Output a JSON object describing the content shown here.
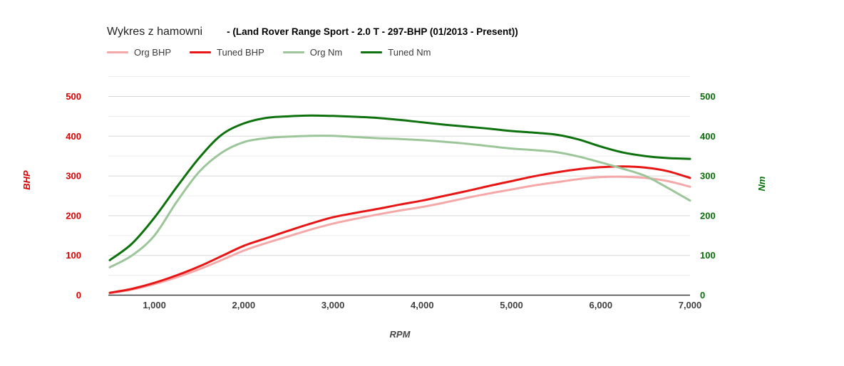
{
  "chart_data": {
    "type": "line",
    "title": "Wykres z hamowni",
    "subtitle": "- (Land Rover Range Sport - 2.0 T - 297-BHP (01/2013 - Present))",
    "xlabel": "RPM",
    "ylabel_left": "BHP",
    "ylabel_right": "Nm",
    "legend_position": "top",
    "grid": true,
    "xlim": [
      500,
      7000
    ],
    "ylim": [
      0,
      550
    ],
    "x_ticks": [
      {
        "value": 1000,
        "label": "1,000"
      },
      {
        "value": 2000,
        "label": "2,000"
      },
      {
        "value": 3000,
        "label": "3,000"
      },
      {
        "value": 4000,
        "label": "4,000"
      },
      {
        "value": 5000,
        "label": "5,000"
      },
      {
        "value": 6000,
        "label": "6,000"
      },
      {
        "value": 7000,
        "label": "7,000"
      }
    ],
    "y_ticks": [
      {
        "value": 0,
        "label": "0"
      },
      {
        "value": 100,
        "label": "100"
      },
      {
        "value": 200,
        "label": "200"
      },
      {
        "value": 300,
        "label": "300"
      },
      {
        "value": 400,
        "label": "400"
      },
      {
        "value": 500,
        "label": "500"
      }
    ],
    "y_minor_gridlines": [
      50,
      150,
      250,
      350,
      450,
      550
    ],
    "x": [
      500,
      750,
      1000,
      1250,
      1500,
      1750,
      2000,
      2250,
      2500,
      2750,
      3000,
      3250,
      3500,
      3750,
      4000,
      4250,
      4500,
      4750,
      5000,
      5250,
      5500,
      5750,
      6000,
      6250,
      6500,
      6750,
      7000
    ],
    "series": [
      {
        "name": "Org BHP",
        "axis": "left",
        "color": "#f5a8a8",
        "values": [
          5,
          14,
          28,
          45,
          65,
          88,
          112,
          131,
          148,
          165,
          180,
          192,
          203,
          213,
          222,
          233,
          245,
          256,
          266,
          276,
          284,
          292,
          297,
          298,
          295,
          287,
          273
        ]
      },
      {
        "name": "Tuned BHP",
        "axis": "left",
        "color": "#e81515",
        "values": [
          6,
          16,
          31,
          50,
          72,
          98,
          124,
          143,
          162,
          180,
          196,
          207,
          217,
          228,
          238,
          250,
          262,
          275,
          287,
          299,
          309,
          317,
          322,
          324,
          321,
          312,
          295
        ]
      },
      {
        "name": "Org Nm",
        "axis": "right",
        "color": "#9cc69a",
        "values": [
          70,
          100,
          150,
          235,
          310,
          358,
          385,
          395,
          399,
          401,
          401,
          398,
          395,
          393,
          390,
          386,
          381,
          375,
          369,
          365,
          360,
          349,
          334,
          318,
          300,
          270,
          238
        ]
      },
      {
        "name": "Tuned Nm",
        "axis": "right",
        "color": "#0d720d",
        "values": [
          88,
          130,
          195,
          272,
          345,
          403,
          432,
          446,
          450,
          452,
          451,
          449,
          446,
          441,
          435,
          429,
          424,
          419,
          413,
          409,
          404,
          392,
          374,
          359,
          350,
          345,
          343
        ]
      }
    ],
    "colors": {
      "left_axis_text": "#de0000",
      "right_axis_text": "#0a6e0a",
      "x_axis_text": "#404040",
      "xlabel_text": "#474747",
      "gridline_minor": "#ededed",
      "gridline_major": "#d8d8d8",
      "baseline": "#3d3d3d"
    }
  }
}
